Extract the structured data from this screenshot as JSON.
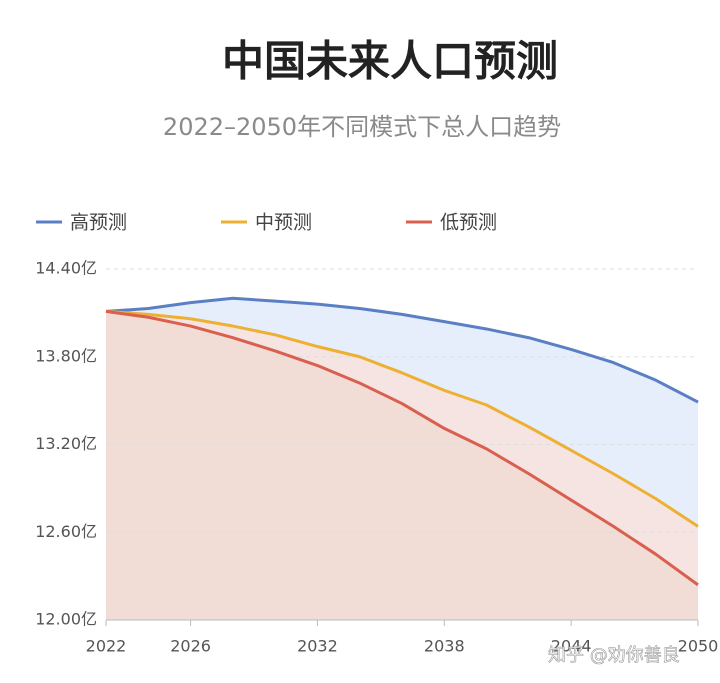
{
  "chart_data": {
    "type": "line",
    "title": "中国未来人口预测",
    "subtitle": "2022–2050年不同模式下总人口趋势",
    "x": [
      2022,
      2024,
      2026,
      2028,
      2030,
      2032,
      2034,
      2036,
      2038,
      2040,
      2042,
      2044,
      2046,
      2048,
      2050
    ],
    "series": [
      {
        "name": "高预测",
        "color": "#5b7fc4",
        "area_color": "#e6eefb",
        "values": [
          14.11,
          14.13,
          14.17,
          14.2,
          14.18,
          14.16,
          14.13,
          14.09,
          14.04,
          13.99,
          13.93,
          13.85,
          13.76,
          13.64,
          13.49
        ]
      },
      {
        "name": "中预测",
        "color": "#eeb033",
        "area_color": "#f5e4e2",
        "values": [
          14.11,
          14.09,
          14.06,
          14.01,
          13.95,
          13.87,
          13.8,
          13.69,
          13.57,
          13.47,
          13.32,
          13.16,
          13.0,
          12.83,
          12.64
        ]
      },
      {
        "name": "低预测",
        "color": "#d9604f",
        "area_color": "#f1ddd6",
        "values": [
          14.11,
          14.07,
          14.01,
          13.93,
          13.84,
          13.74,
          13.62,
          13.48,
          13.31,
          13.17,
          13.0,
          12.82,
          12.64,
          12.45,
          12.24
        ]
      }
    ],
    "xlim": [
      2022,
      2050
    ],
    "xticks": [
      2022,
      2026,
      2032,
      2038,
      2044,
      2050
    ],
    "ylim": [
      12.0,
      14.4
    ],
    "yticks": [
      {
        "value": 12.0,
        "label": "12.00亿"
      },
      {
        "value": 12.6,
        "label": "12.60亿"
      },
      {
        "value": 13.2,
        "label": "13.20亿"
      },
      {
        "value": 13.8,
        "label": "13.80亿"
      },
      {
        "value": 14.4,
        "label": "14.40亿"
      }
    ],
    "grid": true,
    "legend": "top",
    "watermark": "知乎 @劝你善良"
  }
}
